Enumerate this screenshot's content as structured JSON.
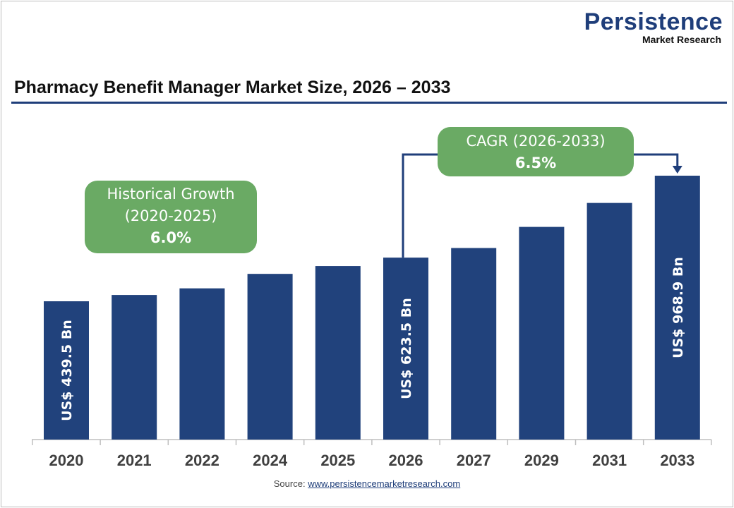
{
  "logo": {
    "line1": "Persistence",
    "line2": "Market Research"
  },
  "title": "Pharmacy Benefit Manager Market Size, 2026 – 2033",
  "source": {
    "label": "Source: ",
    "link": "www.persistencemarketresearch.com"
  },
  "historical": {
    "label_line1": "Historical Growth",
    "label_line2": "(2020-2025)",
    "value": "6.0%"
  },
  "cagr": {
    "label": "CAGR (2026-2033)",
    "value": "6.5%"
  },
  "colors": {
    "bar": "#21427c",
    "badge": "#6aaa64",
    "rule": "#1f3e7a"
  },
  "chart_data": {
    "type": "bar",
    "title": "Pharmacy Benefit Manager Market Size, 2026 – 2033",
    "categories": [
      "2020",
      "2021",
      "2022",
      "2024",
      "2025",
      "2026",
      "2027",
      "2029",
      "2031",
      "2033"
    ],
    "values": [
      439.5,
      466,
      494,
      555,
      588,
      623.5,
      664,
      753,
      854,
      968.9
    ],
    "unit": "US$ Bn",
    "data_labels": {
      "2020": "US$ 439.5 Bn",
      "2026": "US$ 623.5 Bn",
      "2033": "US$ 968.9 Bn"
    },
    "xlabel": "",
    "ylabel": "",
    "grid": false,
    "legend": "none"
  }
}
